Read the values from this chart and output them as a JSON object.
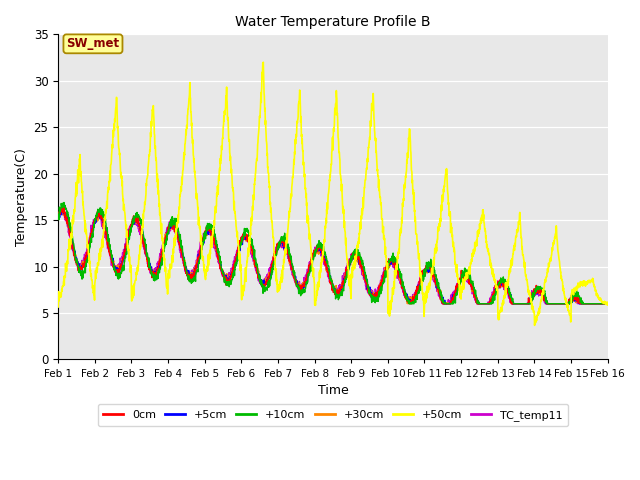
{
  "title": "Water Temperature Profile B",
  "xlabel": "Time",
  "ylabel": "Temperature(C)",
  "ylim": [
    0,
    35
  ],
  "xlim": [
    0,
    15
  ],
  "xtick_labels": [
    "Feb 1",
    "Feb 2",
    "Feb 3",
    "Feb 4",
    "Feb 5",
    "Feb 6",
    "Feb 7",
    "Feb 8",
    "Feb 9",
    "Feb 10",
    "Feb 11",
    "Feb 12",
    "Feb 13",
    "Feb 14",
    "Feb 15",
    "Feb 16"
  ],
  "ytick_values": [
    0,
    5,
    10,
    15,
    20,
    25,
    30,
    35
  ],
  "bg_color": "#e8e8e8",
  "annotation_text": "SW_met",
  "annotation_bg": "#ffff99",
  "annotation_border": "#aa8800",
  "annotation_text_color": "#880000",
  "line_colors": {
    "0cm": "#ff0000",
    "+5cm": "#0000ff",
    "+10cm": "#00bb00",
    "+30cm": "#ff8800",
    "+50cm": "#ffff00",
    "TC_temp11": "#cc00cc"
  }
}
